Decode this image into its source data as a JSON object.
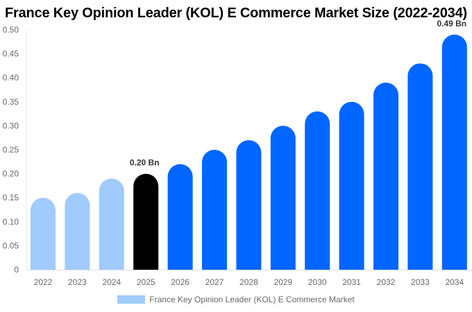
{
  "chart_data": {
    "type": "bar",
    "title": "France Key Opinion Leader (KOL) E Commerce Market Size (2022-2034)",
    "categories": [
      "2022",
      "2023",
      "2024",
      "2025",
      "2026",
      "2027",
      "2028",
      "2029",
      "2030",
      "2031",
      "2032",
      "2033",
      "2034"
    ],
    "series": [
      {
        "name": "France Key Opinion Leader (KOL) E Commerce Market",
        "values": [
          0.15,
          0.16,
          0.19,
          0.2,
          0.22,
          0.25,
          0.27,
          0.3,
          0.33,
          0.35,
          0.39,
          0.43,
          0.49
        ]
      }
    ],
    "data_labels": {
      "3": "0.20 Bn",
      "12": "0.49 Bn"
    },
    "ylim": [
      0,
      0.5
    ],
    "yticks": [
      "0",
      "0.05",
      "0.10",
      "0.15",
      "0.20",
      "0.25",
      "0.30",
      "0.35",
      "0.40",
      "0.45",
      "0.50"
    ],
    "xlabel": "",
    "ylabel": "",
    "grid": false,
    "legend_position": "bottom",
    "colors": {
      "historical": "#a0cbfc",
      "base_year": "#000000",
      "forecast": "#0066ff",
      "legend": "#a0cbfc"
    }
  }
}
